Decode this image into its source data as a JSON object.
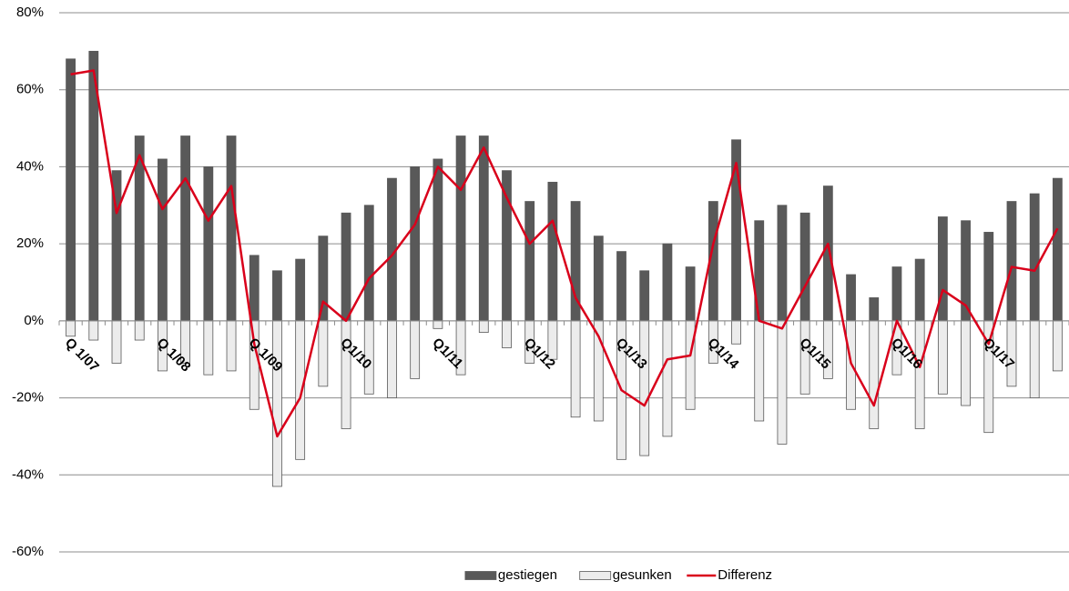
{
  "chart_data": {
    "type": "bar_line",
    "categories": [
      "Q 1/07",
      null,
      null,
      null,
      "Q 1/08",
      null,
      null,
      null,
      "Q 1/09",
      null,
      null,
      null,
      "Q1/10",
      null,
      null,
      null,
      "Q1/11",
      null,
      null,
      null,
      "Q1/12",
      null,
      null,
      null,
      "Q1/13",
      null,
      null,
      null,
      "Q1/14",
      null,
      null,
      null,
      "Q1/15",
      null,
      null,
      null,
      "Q1/16",
      null,
      null,
      null,
      "Q1/17",
      null,
      null,
      null
    ],
    "series": [
      {
        "name": "gestiegen",
        "color": "#595959",
        "kind": "bar",
        "values": [
          68,
          70,
          39,
          48,
          42,
          48,
          40,
          48,
          17,
          13,
          16,
          22,
          28,
          30,
          37,
          40,
          42,
          48,
          48,
          39,
          31,
          36,
          31,
          22,
          18,
          13,
          20,
          14,
          31,
          47,
          26,
          30,
          28,
          35,
          12,
          6,
          14,
          16,
          27,
          26,
          23,
          31,
          33,
          37
        ]
      },
      {
        "name": "gesunken",
        "color": "#ececec",
        "kind": "bar",
        "values": [
          -4,
          -5,
          -11,
          -5,
          -13,
          -11,
          -14,
          -13,
          -23,
          -43,
          -36,
          -17,
          -28,
          -19,
          -20,
          -15,
          -2,
          -14,
          -3,
          -7,
          -11,
          -10,
          -25,
          -26,
          -36,
          -35,
          -30,
          -23,
          -11,
          -6,
          -26,
          -32,
          -19,
          -15,
          -23,
          -28,
          -14,
          -28,
          -19,
          -22,
          -29,
          -17,
          -20,
          -13
        ]
      },
      {
        "name": "Differenz",
        "color": "#d9001b",
        "kind": "line",
        "values": [
          64,
          65,
          28,
          43,
          29,
          37,
          26,
          35,
          -6,
          -30,
          -20,
          5,
          0,
          11,
          17,
          25,
          40,
          34,
          45,
          32,
          20,
          26,
          6,
          -4,
          -18,
          -22,
          -10,
          -9,
          20,
          41,
          0,
          -2,
          9,
          20,
          -11,
          -22,
          0,
          -12,
          8,
          4,
          -6,
          14,
          13,
          24
        ]
      }
    ],
    "ylim": [
      -60,
      80
    ],
    "yticks": [
      {
        "value": -60,
        "label": "-60%"
      },
      {
        "value": -40,
        "label": "-40%"
      },
      {
        "value": -20,
        "label": "-20%"
      },
      {
        "value": 0,
        "label": "0%"
      },
      {
        "value": 20,
        "label": "20%"
      },
      {
        "value": 40,
        "label": "40%"
      },
      {
        "value": 60,
        "label": "60%"
      },
      {
        "value": 80,
        "label": "80%"
      }
    ],
    "grid": true,
    "legend": "bottom"
  }
}
